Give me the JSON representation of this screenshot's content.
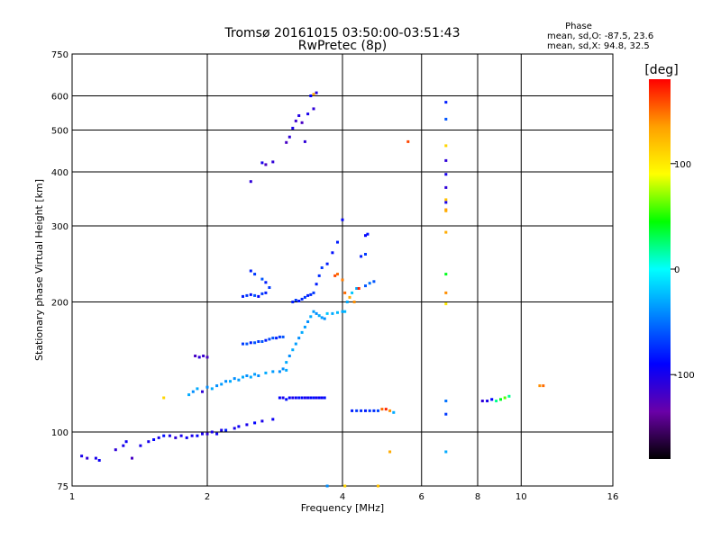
{
  "chart_data": {
    "type": "scatter",
    "title": "Tromsø 20161015 03:50:00-03:51:43",
    "subtitle": "RwPretec (8p)",
    "xlabel": "Frequency [MHz]",
    "ylabel": "Stationary phase Virtual Height [km]",
    "x_scale": "log",
    "y_scale": "log",
    "xlim": [
      1,
      16
    ],
    "ylim": [
      75,
      750
    ],
    "x_ticks": [
      1,
      2,
      4,
      6,
      8,
      10,
      16
    ],
    "y_ticks": [
      75,
      100,
      200,
      300,
      400,
      500,
      600,
      750
    ],
    "grid": true,
    "stats": {
      "heading": "Phase",
      "line_o": "mean, sd,O: -87.5, 23.6",
      "line_x": "mean, sd,X:  94.8, 32.5"
    },
    "colorbar": {
      "label": "[deg]",
      "range": [
        -180,
        180
      ],
      "ticks": [
        100,
        0,
        -100
      ],
      "colors": [
        "#000000",
        "#6a00a8",
        "#0000ff",
        "#0080ff",
        "#00ffff",
        "#00ff00",
        "#ffff00",
        "#ffa000",
        "#ff0000"
      ]
    },
    "series": [
      {
        "points": [
          [
            1.05,
            88,
            -100
          ],
          [
            1.08,
            87,
            -110
          ],
          [
            1.13,
            87,
            -100
          ],
          [
            1.15,
            86,
            -95
          ],
          [
            1.25,
            91,
            -110
          ],
          [
            1.3,
            93,
            -100
          ],
          [
            1.32,
            95,
            -95
          ],
          [
            1.36,
            87,
            -120
          ],
          [
            1.42,
            93,
            -100
          ],
          [
            1.48,
            95,
            -100
          ],
          [
            1.52,
            96,
            -90
          ],
          [
            1.56,
            97,
            -100
          ],
          [
            1.6,
            98,
            -85
          ],
          [
            1.65,
            98,
            -100
          ],
          [
            1.7,
            97,
            -110
          ],
          [
            1.75,
            98,
            -100
          ],
          [
            1.8,
            97,
            -95
          ],
          [
            1.85,
            98,
            -100
          ],
          [
            1.9,
            98,
            -90
          ],
          [
            1.95,
            99,
            -100
          ],
          [
            2.0,
            99,
            -110
          ],
          [
            2.05,
            100,
            -100
          ],
          [
            2.1,
            99,
            -95
          ],
          [
            2.15,
            101,
            -100
          ],
          [
            2.2,
            101,
            -80
          ],
          [
            2.3,
            102,
            -100
          ],
          [
            2.35,
            103,
            -95
          ],
          [
            2.45,
            104,
            -100
          ],
          [
            2.55,
            105,
            -90
          ],
          [
            2.65,
            106,
            -100
          ],
          [
            2.8,
            107,
            -95
          ],
          [
            1.88,
            150,
            -120
          ],
          [
            1.92,
            149,
            -110
          ],
          [
            1.96,
            150,
            -115
          ],
          [
            2.0,
            149,
            -120
          ],
          [
            1.82,
            122,
            -30
          ],
          [
            1.86,
            124,
            -40
          ],
          [
            1.9,
            126,
            -30
          ],
          [
            1.95,
            124,
            -110
          ],
          [
            2.0,
            127,
            -40
          ],
          [
            2.05,
            126,
            -30
          ],
          [
            2.1,
            128,
            -40
          ],
          [
            2.15,
            129,
            -35
          ],
          [
            2.2,
            131,
            -40
          ],
          [
            2.25,
            131,
            -30
          ],
          [
            2.3,
            133,
            -40
          ],
          [
            2.35,
            132,
            -35
          ],
          [
            2.4,
            134,
            -30
          ],
          [
            2.45,
            135,
            -40
          ],
          [
            2.5,
            134,
            -30
          ],
          [
            2.55,
            136,
            -35
          ],
          [
            2.6,
            135,
            -40
          ],
          [
            2.7,
            137,
            -30
          ],
          [
            2.8,
            138,
            -35
          ],
          [
            2.9,
            138,
            -40
          ],
          [
            3.0,
            139,
            -30
          ],
          [
            2.4,
            160,
            -70
          ],
          [
            2.45,
            160,
            -60
          ],
          [
            2.5,
            161,
            -80
          ],
          [
            2.55,
            161,
            -60
          ],
          [
            2.6,
            162,
            -70
          ],
          [
            2.65,
            162,
            -60
          ],
          [
            2.7,
            163,
            -80
          ],
          [
            2.75,
            164,
            -65
          ],
          [
            2.8,
            165,
            -60
          ],
          [
            2.85,
            165,
            -80
          ],
          [
            2.9,
            166,
            -70
          ],
          [
            2.95,
            166,
            -60
          ],
          [
            2.4,
            206,
            -80
          ],
          [
            2.45,
            207,
            -70
          ],
          [
            2.5,
            208,
            -85
          ],
          [
            2.55,
            207,
            -60
          ],
          [
            2.6,
            206,
            -90
          ],
          [
            2.65,
            209,
            -70
          ],
          [
            2.7,
            210,
            -80
          ],
          [
            2.5,
            236,
            -80
          ],
          [
            2.55,
            232,
            -70
          ],
          [
            2.65,
            226,
            -60
          ],
          [
            2.7,
            222,
            -80
          ],
          [
            2.75,
            216,
            -70
          ],
          [
            2.5,
            380,
            -110
          ],
          [
            2.65,
            420,
            -100
          ],
          [
            2.7,
            416,
            -120
          ],
          [
            2.8,
            422,
            -110
          ],
          [
            3.0,
            468,
            -120
          ],
          [
            3.05,
            482,
            -110
          ],
          [
            3.1,
            505,
            -100
          ],
          [
            3.15,
            525,
            -115
          ],
          [
            3.2,
            540,
            -105
          ],
          [
            3.25,
            520,
            -120
          ],
          [
            3.3,
            470,
            -110
          ],
          [
            3.35,
            545,
            -100
          ],
          [
            3.4,
            600,
            -90
          ],
          [
            3.45,
            560,
            -110
          ],
          [
            3.5,
            610,
            -105
          ],
          [
            3.45,
            605,
            130
          ],
          [
            2.9,
            120,
            -90
          ],
          [
            2.95,
            120,
            -100
          ],
          [
            3.0,
            119,
            -85
          ],
          [
            3.05,
            120,
            -90
          ],
          [
            3.1,
            120,
            -100
          ],
          [
            3.15,
            120,
            -95
          ],
          [
            3.2,
            120,
            -85
          ],
          [
            3.25,
            120,
            -90
          ],
          [
            3.3,
            120,
            -100
          ],
          [
            3.35,
            120,
            -95
          ],
          [
            3.4,
            120,
            -90
          ],
          [
            3.45,
            120,
            -85
          ],
          [
            3.5,
            120,
            -100
          ],
          [
            3.55,
            120,
            -90
          ],
          [
            3.6,
            120,
            -95
          ],
          [
            3.65,
            120,
            -85
          ],
          [
            2.95,
            140,
            -40
          ],
          [
            3.0,
            145,
            -30
          ],
          [
            3.05,
            150,
            -40
          ],
          [
            3.1,
            155,
            -30
          ],
          [
            3.15,
            160,
            -35
          ],
          [
            3.2,
            165,
            -40
          ],
          [
            3.25,
            170,
            -30
          ],
          [
            3.3,
            175,
            -35
          ],
          [
            3.35,
            180,
            -40
          ],
          [
            3.4,
            185,
            -30
          ],
          [
            3.45,
            190,
            -35
          ],
          [
            3.5,
            188,
            -40
          ],
          [
            3.55,
            186,
            -30
          ],
          [
            3.6,
            184,
            -35
          ],
          [
            3.65,
            183,
            -40
          ],
          [
            3.1,
            200,
            -80
          ],
          [
            3.15,
            202,
            -70
          ],
          [
            3.2,
            201,
            -85
          ],
          [
            3.25,
            203,
            -75
          ],
          [
            3.3,
            205,
            -70
          ],
          [
            3.35,
            207,
            -80
          ],
          [
            3.4,
            208,
            -75
          ],
          [
            3.45,
            210,
            -70
          ],
          [
            3.5,
            220,
            -80
          ],
          [
            3.55,
            230,
            -75
          ],
          [
            3.6,
            240,
            -70
          ],
          [
            3.7,
            245,
            -80
          ],
          [
            3.8,
            260,
            -85
          ],
          [
            3.9,
            275,
            -80
          ],
          [
            4.0,
            310,
            -90
          ],
          [
            3.7,
            188,
            -20
          ],
          [
            3.8,
            188,
            -30
          ],
          [
            3.9,
            189,
            -25
          ],
          [
            4.0,
            190,
            -30
          ],
          [
            4.05,
            190,
            -25
          ],
          [
            4.1,
            200,
            -30
          ],
          [
            4.2,
            210,
            -20
          ],
          [
            4.3,
            215,
            -30
          ],
          [
            3.85,
            230,
            160
          ],
          [
            3.9,
            232,
            150
          ],
          [
            4.0,
            225,
            145
          ],
          [
            4.05,
            210,
            150
          ],
          [
            4.15,
            205,
            130
          ],
          [
            4.25,
            200,
            140
          ],
          [
            4.35,
            215,
            170
          ],
          [
            4.5,
            218,
            -60
          ],
          [
            4.6,
            221,
            -50
          ],
          [
            4.7,
            223,
            -60
          ],
          [
            4.4,
            255,
            -80
          ],
          [
            4.5,
            258,
            -70
          ],
          [
            4.5,
            285,
            -90
          ],
          [
            4.55,
            287,
            -85
          ],
          [
            4.2,
            112,
            -80
          ],
          [
            4.3,
            112,
            -70
          ],
          [
            4.4,
            112,
            -75
          ],
          [
            4.5,
            112,
            -80
          ],
          [
            4.6,
            112,
            -70
          ],
          [
            4.7,
            112,
            -75
          ],
          [
            4.8,
            112,
            -65
          ],
          [
            4.9,
            113,
            150
          ],
          [
            5.0,
            113,
            170
          ],
          [
            5.1,
            112,
            140
          ],
          [
            5.2,
            111,
            -30
          ],
          [
            5.6,
            470,
            160
          ],
          [
            5.1,
            90,
            130
          ],
          [
            4.8,
            75,
            120
          ],
          [
            3.7,
            75,
            -40
          ],
          [
            4.05,
            75,
            110
          ],
          [
            6.8,
            580,
            -80
          ],
          [
            6.8,
            530,
            -60
          ],
          [
            6.8,
            460,
            110
          ],
          [
            6.8,
            425,
            -110
          ],
          [
            6.8,
            395,
            -100
          ],
          [
            6.8,
            368,
            -110
          ],
          [
            6.8,
            345,
            120
          ],
          [
            6.8,
            340,
            -100
          ],
          [
            6.8,
            327,
            135
          ],
          [
            6.8,
            325,
            130
          ],
          [
            6.8,
            290,
            130
          ],
          [
            6.8,
            232,
            40
          ],
          [
            6.8,
            210,
            140
          ],
          [
            6.8,
            198,
            100
          ],
          [
            6.8,
            118,
            -50
          ],
          [
            6.8,
            110,
            -70
          ],
          [
            6.8,
            90,
            -30
          ],
          [
            8.2,
            118,
            -110
          ],
          [
            8.4,
            118,
            -100
          ],
          [
            8.6,
            119,
            -90
          ],
          [
            8.8,
            118,
            20
          ],
          [
            9.0,
            119,
            40
          ],
          [
            9.2,
            120,
            60
          ],
          [
            9.4,
            121,
            20
          ],
          [
            11.0,
            128,
            140
          ],
          [
            11.2,
            128,
            150
          ],
          [
            1.6,
            120,
            110
          ]
        ]
      }
    ]
  }
}
